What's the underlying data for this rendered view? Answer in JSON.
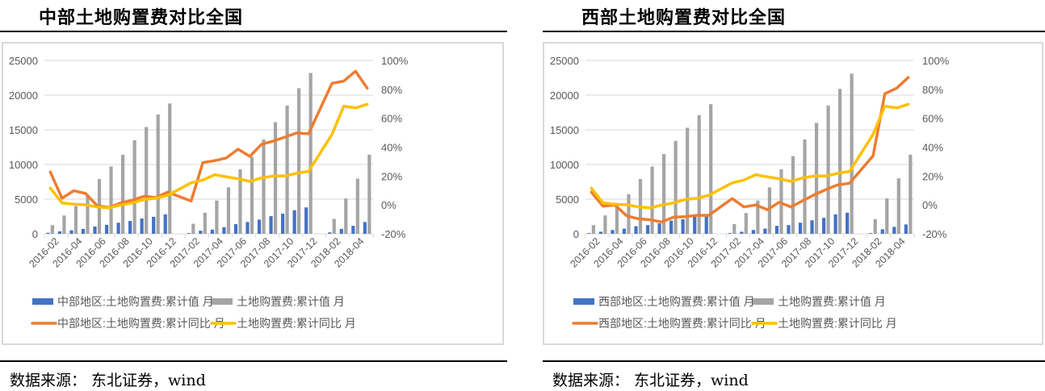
{
  "panels": [
    {
      "title": "中部土地购置费对比全国",
      "footer": "数据来源： 东北证券，wind"
    },
    {
      "title": "西部土地购置费对比全国",
      "footer": "数据来源： 东北证券，wind"
    }
  ],
  "colors": {
    "region_value": "#4472C4",
    "national_value": "#A5A5A5",
    "region_yoy": "#ED7D31",
    "national_yoy": "#FFC000"
  },
  "chart_data": [
    {
      "type": "bar+line",
      "title": "中部土地购置费对比全国",
      "categories": [
        "2016-02",
        "2016-03",
        "2016-04",
        "2016-05",
        "2016-06",
        "2016-07",
        "2016-08",
        "2016-09",
        "2016-10",
        "2016-11",
        "2016-12",
        "2017-01",
        "2017-02",
        "2017-03",
        "2017-04",
        "2017-05",
        "2017-06",
        "2017-07",
        "2017-08",
        "2017-09",
        "2017-10",
        "2017-11",
        "2017-12",
        "2018-01",
        "2018-02",
        "2018-03",
        "2018-04",
        "2018-05"
      ],
      "tick_labels": [
        "2016-02",
        "2016-04",
        "2016-06",
        "2016-08",
        "2016-10",
        "2016-12",
        "2017-02",
        "2017-04",
        "2017-06",
        "2017-08",
        "2017-10",
        "2017-12",
        "2018-02",
        "2018-04"
      ],
      "y_left": {
        "range": [
          0,
          25000
        ],
        "ticks": [
          "0",
          "5000",
          "10000",
          "15000",
          "20000",
          "25000"
        ]
      },
      "y_right": {
        "range": [
          -20,
          100
        ],
        "ticks": [
          "-20%",
          "0%",
          "20%",
          "40%",
          "60%",
          "80%",
          "100%"
        ]
      },
      "grid": true,
      "legend_position": "bottom",
      "series": [
        {
          "name": "中部地区:土地购置费:累计值 月",
          "type": "bar",
          "axis": "left",
          "color_key": "region_value",
          "values": [
            150,
            350,
            500,
            700,
            1050,
            1300,
            1600,
            1850,
            2200,
            2450,
            2800,
            null,
            100,
            450,
            600,
            950,
            1400,
            1700,
            2050,
            2550,
            2900,
            3400,
            3800,
            null,
            200,
            700,
            1150,
            1700
          ]
        },
        {
          "name": "土地购置费:累计值 月",
          "type": "bar",
          "axis": "left",
          "color_key": "national_value",
          "values": [
            1250,
            2650,
            4000,
            5600,
            7900,
            9700,
            11400,
            13500,
            15400,
            17200,
            18800,
            null,
            1450,
            3050,
            4800,
            6700,
            9300,
            11100,
            13600,
            16100,
            18500,
            21000,
            23200,
            null,
            2150,
            5100,
            7950,
            11400
          ]
        },
        {
          "name": "中部地区:土地购置费:累计同比 月",
          "type": "line",
          "axis": "right",
          "color_key": "region_yoy",
          "values": [
            22.8,
            4.6,
            9.8,
            7.9,
            -0.5,
            -1.8,
            1.4,
            3.3,
            6.0,
            5.1,
            8.8,
            null,
            2.7,
            29.3,
            30.6,
            32.5,
            38.6,
            33.6,
            42.0,
            44.2,
            47.0,
            49.8,
            49.2,
            null,
            84.2,
            85.7,
            92.6,
            80.8
          ]
        },
        {
          "name": "土地购置费:累计同比 月",
          "type": "line",
          "axis": "right",
          "color_key": "national_yoy",
          "values": [
            11.6,
            1.4,
            0.5,
            0.1,
            -1.4,
            -2.0,
            -0.1,
            1.4,
            3.8,
            4.6,
            6.6,
            null,
            15.3,
            17.2,
            20.9,
            19.4,
            18.1,
            16.3,
            18.7,
            20.0,
            20.0,
            21.9,
            23.2,
            null,
            48.8,
            68.4,
            67.1,
            69.7
          ]
        }
      ]
    },
    {
      "type": "bar+line",
      "title": "西部土地购置费对比全国",
      "categories": [
        "2016-02",
        "2016-03",
        "2016-04",
        "2016-05",
        "2016-06",
        "2016-07",
        "2016-08",
        "2016-09",
        "2016-10",
        "2016-11",
        "2016-12",
        "2017-01",
        "2017-02",
        "2017-03",
        "2017-04",
        "2017-05",
        "2017-06",
        "2017-07",
        "2017-08",
        "2017-09",
        "2017-10",
        "2017-11",
        "2017-12",
        "2018-01",
        "2018-02",
        "2018-03",
        "2018-04",
        "2018-05"
      ],
      "tick_labels": [
        "2016-02",
        "2016-04",
        "2016-06",
        "2016-08",
        "2016-10",
        "2016-12",
        "2017-02",
        "2017-04",
        "2017-06",
        "2017-08",
        "2017-10",
        "2017-12",
        "2018-02",
        "2018-04"
      ],
      "y_left": {
        "range": [
          0,
          25000
        ],
        "ticks": [
          "0",
          "5000",
          "10000",
          "15000",
          "20000",
          "25000"
        ]
      },
      "y_right": {
        "range": [
          -20,
          100
        ],
        "ticks": [
          "-20%",
          "0%",
          "20%",
          "40%",
          "60%",
          "80%",
          "100%"
        ]
      },
      "grid": true,
      "legend_position": "bottom",
      "series": [
        {
          "name": "西部地区:土地购置费:累计值 月",
          "type": "bar",
          "axis": "left",
          "color_key": "region_value",
          "values": [
            100,
            300,
            550,
            750,
            1100,
            1250,
            1500,
            1900,
            2100,
            2450,
            2500,
            null,
            100,
            300,
            550,
            750,
            1150,
            1250,
            1600,
            1950,
            2300,
            2800,
            3050,
            null,
            100,
            650,
            1000,
            1350
          ]
        },
        {
          "name": "土地购置费:累计值 月",
          "type": "bar",
          "axis": "left",
          "color_key": "national_value",
          "values": [
            1250,
            2650,
            4000,
            5700,
            7900,
            9700,
            11500,
            13400,
            15300,
            17100,
            18700,
            null,
            1400,
            3000,
            4800,
            6700,
            9300,
            11200,
            13600,
            16000,
            18500,
            20900,
            23100,
            null,
            2100,
            5100,
            8000,
            11400
          ]
        },
        {
          "name": "西部地区:土地购置费:累计同比 月",
          "type": "line",
          "axis": "right",
          "color_key": "region_yoy",
          "values": [
            8.8,
            -0.9,
            0.0,
            -7.5,
            -9.6,
            -10.3,
            -11.8,
            -8.5,
            -8.1,
            -7.2,
            -7.2,
            null,
            4.4,
            -1.4,
            0.0,
            -3.3,
            1.8,
            -1.4,
            2.9,
            7.0,
            10.7,
            13.9,
            15.0,
            null,
            34.0,
            77.0,
            80.8,
            88.2
          ]
        },
        {
          "name": "土地购置费:累计同比 月",
          "type": "line",
          "axis": "right",
          "color_key": "national_yoy",
          "values": [
            11.6,
            1.4,
            0.5,
            0.1,
            -1.4,
            -2.0,
            -0.1,
            1.4,
            3.8,
            4.6,
            6.6,
            null,
            15.3,
            17.2,
            20.9,
            19.4,
            18.1,
            16.3,
            18.7,
            20.0,
            20.0,
            21.9,
            23.2,
            null,
            48.8,
            68.4,
            67.1,
            69.7
          ]
        }
      ]
    }
  ]
}
